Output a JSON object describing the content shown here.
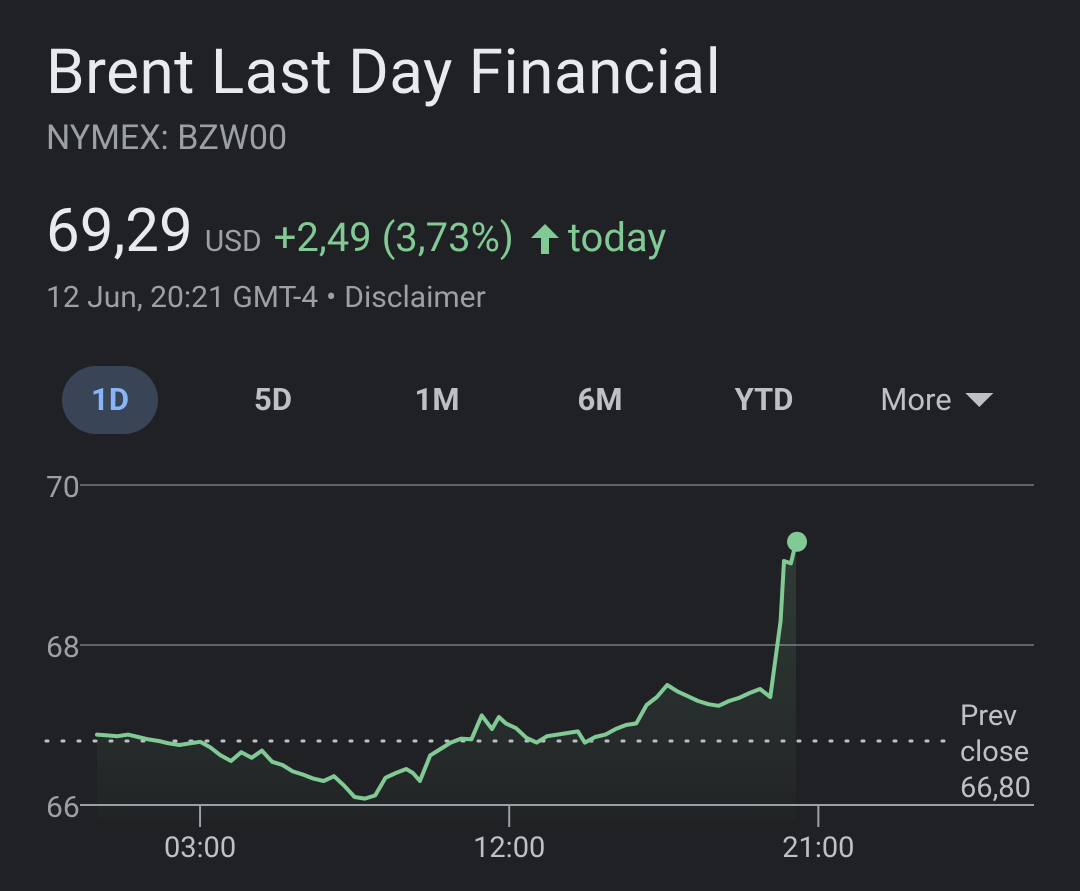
{
  "header": {
    "title": "Brent Last Day Financial",
    "ticker": "NYMEX: BZW00"
  },
  "quote": {
    "price": "69,29",
    "currency": "USD",
    "change": "+2,49 (3,73%)",
    "period": "today",
    "timestamp": "12 Jun, 20:21 GMT-4",
    "separator": "•",
    "disclaimer": "Disclaimer"
  },
  "tabs": [
    {
      "label": "1D",
      "active": true
    },
    {
      "label": "5D",
      "active": false
    },
    {
      "label": "1M",
      "active": false
    },
    {
      "label": "6M",
      "active": false
    },
    {
      "label": "YTD",
      "active": false
    },
    {
      "label": "More",
      "active": false
    }
  ],
  "colors": {
    "background": "#202124",
    "line": "#81c995",
    "active_tab_bg": "#394457",
    "active_tab_text": "#8ab4f8",
    "gridline": "#5f6368"
  },
  "chart_data": {
    "type": "area",
    "x_unit": "hour of day",
    "ylim": [
      66,
      70
    ],
    "xlim": [
      0,
      24
    ],
    "y_ticks": [
      "70",
      "68",
      "66"
    ],
    "x_ticks": [
      "03:00",
      "12:00",
      "21:00"
    ],
    "prev_close": {
      "label_line1": "Prev",
      "label_line2": "close",
      "value": "66,80",
      "value_num": 66.8
    },
    "last_price": 69.29,
    "series": [
      {
        "x": [
          0.0,
          0.3,
          0.6,
          0.9,
          1.2,
          1.5,
          1.8,
          2.1,
          2.4,
          2.7,
          3.0,
          3.3,
          3.6,
          3.9,
          4.2,
          4.5,
          4.8,
          5.1,
          5.4,
          5.7,
          6.0,
          6.3,
          6.6,
          6.9,
          7.2,
          7.5,
          7.8,
          8.1,
          8.4,
          8.7,
          9.0,
          9.2,
          9.4,
          9.7,
          10.0,
          10.3,
          10.6,
          10.9,
          11.2,
          11.5,
          11.7,
          11.9,
          12.2,
          12.5,
          12.8,
          13.1,
          13.4,
          13.7,
          14.0,
          14.2,
          14.5,
          14.8,
          15.1,
          15.4,
          15.7,
          16.0,
          16.3,
          16.6,
          16.9,
          17.2,
          17.5,
          17.8,
          18.1,
          18.4,
          18.7,
          19.0,
          19.3,
          19.6,
          19.9,
          20.0,
          20.2,
          20.35
        ],
        "y": [
          66.88,
          66.87,
          66.86,
          66.88,
          66.85,
          66.82,
          66.8,
          66.77,
          66.75,
          66.77,
          66.79,
          66.72,
          66.62,
          66.55,
          66.66,
          66.59,
          66.68,
          66.54,
          66.5,
          66.42,
          66.38,
          66.33,
          66.3,
          66.36,
          66.24,
          66.1,
          66.08,
          66.12,
          66.34,
          66.4,
          66.45,
          66.4,
          66.3,
          66.62,
          66.7,
          66.78,
          66.83,
          66.82,
          67.12,
          66.95,
          67.1,
          67.02,
          66.96,
          66.84,
          66.78,
          66.86,
          66.88,
          66.9,
          66.92,
          66.78,
          66.85,
          66.88,
          66.95,
          67.0,
          67.02,
          67.25,
          67.35,
          67.5,
          67.42,
          67.36,
          67.3,
          67.26,
          67.24,
          67.3,
          67.34,
          67.4,
          67.45,
          67.35,
          68.3,
          69.05,
          69.02,
          69.29
        ]
      }
    ]
  }
}
